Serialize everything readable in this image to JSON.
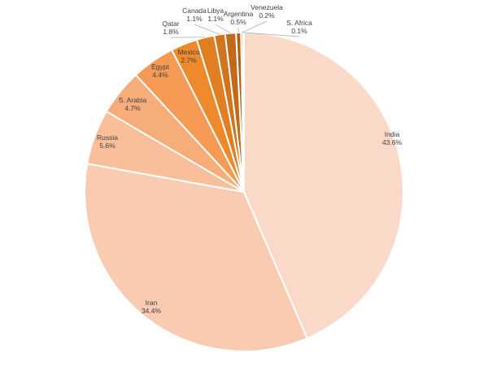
{
  "chart_data": {
    "type": "pie",
    "title": "",
    "start": "12 o'clock, clockwise",
    "slices": [
      {
        "label": "India",
        "value": 43.6,
        "value_label": "43.6%",
        "color": "#fbd9c9"
      },
      {
        "label": "Iran",
        "value": 34.4,
        "value_label": "34.4%",
        "color": "#f9ccb2"
      },
      {
        "label": "Russia",
        "value": 5.6,
        "value_label": "5.6%",
        "color": "#f8bf9a"
      },
      {
        "label": "S. Arabia",
        "value": 4.7,
        "value_label": "4.7%",
        "color": "#f6ad7a"
      },
      {
        "label": "Egypt",
        "value": 4.4,
        "value_label": "4.4%",
        "color": "#f49a54"
      },
      {
        "label": "Mexico",
        "value": 2.7,
        "value_label": "2.7%",
        "color": "#ee8a2c"
      },
      {
        "label": "Qatar",
        "value": 1.8,
        "value_label": "1.8%",
        "color": "#e07e22"
      },
      {
        "label": "Canada",
        "value": 1.1,
        "value_label": "1.1%",
        "color": "#d2741d"
      },
      {
        "label": "Libya",
        "value": 1.1,
        "value_label": "1.1%",
        "color": "#c26a1a"
      },
      {
        "label": "Argentina",
        "value": 0.5,
        "value_label": "0.5%",
        "color": "#b05f16"
      },
      {
        "label": "Venezuela",
        "value": 0.2,
        "value_label": "0.2%",
        "color": "#9a5313"
      },
      {
        "label": "S. Africa",
        "value": 0.1,
        "value_label": "0.1%",
        "color": "#854710"
      }
    ]
  }
}
